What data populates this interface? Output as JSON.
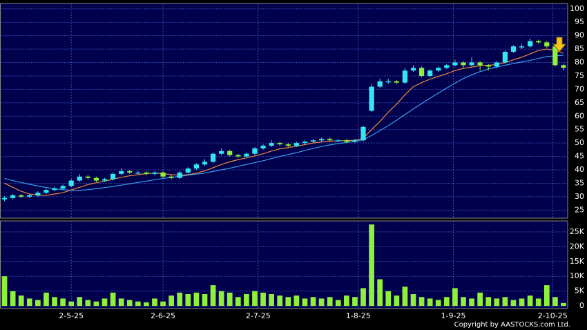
{
  "chart_data": {
    "type": "candlestick",
    "up_color": "#33e6f0",
    "down_color": "#8ff03a",
    "volume_color": "#8ff03a",
    "background": "#00004d",
    "grid": true,
    "xlim": [
      -0.5,
      67.5
    ],
    "xticks": [
      {
        "value": 8,
        "label": "2-5-25"
      },
      {
        "value": 19,
        "label": "2-6-25"
      },
      {
        "value": 30.4,
        "label": "2-7-25"
      },
      {
        "value": 42.4,
        "label": "1-8-25"
      },
      {
        "value": 53.8,
        "label": "1-9-25"
      },
      {
        "value": 65.7,
        "label": "2-10-25"
      }
    ],
    "ylim": [
      22,
      102
    ],
    "yticks": [
      25,
      30,
      35,
      40,
      45,
      50,
      55,
      60,
      65,
      70,
      75,
      80,
      85,
      90,
      95,
      100
    ],
    "volume_ylim": [
      -900,
      28700
    ],
    "volume_yticks": [
      0,
      {
        "value": 5000,
        "label": "5K"
      },
      {
        "value": 10000,
        "label": "10K"
      },
      {
        "value": 15000,
        "label": "15K"
      },
      {
        "value": 20000,
        "label": "20K"
      },
      {
        "value": 25000,
        "label": "25K"
      }
    ],
    "open": [
      29,
      29.5,
      30.5,
      30,
      30.5,
      31.5,
      32.5,
      33,
      34,
      36,
      37.5,
      37,
      36,
      36.5,
      38.5,
      39.5,
      39,
      39,
      38.5,
      39,
      37.5,
      37,
      39,
      40.5,
      42,
      43,
      46,
      47,
      45.5,
      45,
      46,
      48,
      49,
      50,
      49.5,
      49,
      50,
      50.5,
      51,
      51.5,
      51,
      51,
      50.5,
      51,
      62,
      71,
      73,
      73,
      72.5,
      77,
      78,
      75,
      77,
      78,
      79,
      80,
      79,
      80,
      79,
      78.5,
      80,
      84,
      86,
      86,
      88,
      87.5,
      86,
      79
    ],
    "high": [
      30.2,
      31,
      31,
      31,
      32,
      33,
      33.8,
      34.5,
      36.5,
      38.5,
      38,
      37.5,
      37,
      39,
      40.5,
      40,
      39.5,
      39.5,
      39.5,
      39.5,
      38,
      39.5,
      41,
      42.5,
      44,
      46.5,
      48,
      47.5,
      46,
      46.5,
      48.5,
      49.5,
      51,
      50.5,
      50,
      50.5,
      51,
      51.5,
      52,
      52,
      51.5,
      51.5,
      51.5,
      56.5,
      72,
      74,
      74,
      73.5,
      78,
      79,
      78.5,
      77.5,
      78.5,
      79.5,
      81,
      80.5,
      82,
      80.5,
      79.5,
      80.5,
      84.5,
      86.5,
      87,
      89,
      88.5,
      88,
      86.5,
      79.5
    ],
    "low": [
      28.3,
      29,
      29.5,
      29.5,
      30,
      31,
      32,
      32.5,
      33.5,
      35.5,
      36.5,
      35.5,
      35.5,
      36,
      38,
      38.5,
      38.5,
      38,
      38,
      37,
      36.5,
      36.5,
      38.5,
      40,
      41.5,
      42.5,
      45.5,
      45,
      44.5,
      44.5,
      45.5,
      47.5,
      48.5,
      49,
      48.5,
      48.5,
      49.5,
      50,
      50.5,
      50.5,
      50.5,
      50,
      50,
      50.5,
      61.5,
      70.5,
      72,
      72,
      72,
      76.5,
      74.5,
      74.5,
      76.5,
      77.5,
      78.5,
      78,
      78.5,
      77,
      77,
      78,
      79.5,
      83.5,
      85,
      85.5,
      87,
      85.5,
      78.5,
      77
    ],
    "close": [
      29.5,
      30.5,
      30,
      30.5,
      31.5,
      32.5,
      33,
      34,
      36,
      37.5,
      37,
      36,
      36.5,
      38.5,
      39.5,
      39,
      39,
      38.5,
      39,
      37.5,
      37,
      39,
      40.5,
      42,
      43,
      46,
      47,
      45.5,
      45,
      46,
      48,
      49,
      50,
      49.5,
      49,
      50,
      50.5,
      51,
      51.5,
      51,
      51,
      50.5,
      51,
      56,
      71,
      73,
      73,
      72.5,
      77,
      78,
      75,
      77,
      78,
      79,
      80,
      79,
      80,
      79,
      78.5,
      80,
      84,
      86,
      86,
      88,
      87.5,
      86,
      79,
      78
    ],
    "volume": [
      10000,
      5000,
      3500,
      2500,
      2000,
      4500,
      3000,
      2500,
      1500,
      3000,
      2000,
      1500,
      2500,
      4500,
      2500,
      2000,
      1500,
      1200,
      2500,
      1500,
      3500,
      4500,
      4000,
      4500,
      4000,
      7000,
      5000,
      4500,
      3000,
      4000,
      5000,
      4500,
      4000,
      3500,
      3000,
      3500,
      2500,
      3000,
      2500,
      3000,
      2000,
      3500,
      3000,
      6000,
      27500,
      9000,
      5000,
      3500,
      6500,
      4000,
      3000,
      2500,
      2000,
      3000,
      6000,
      3000,
      2500,
      4500,
      3000,
      2500,
      3000,
      2000,
      2500,
      3500,
      2500,
      7000,
      3000,
      1000
    ],
    "moving_averages": [
      {
        "color": "#f08a3a",
        "values": [
          35,
          33.5,
          32,
          31,
          30.5,
          30.5,
          31,
          31.5,
          32.5,
          33.5,
          34.5,
          35.2,
          35.8,
          36.5,
          37.2,
          37.8,
          38.2,
          38.6,
          38.8,
          38.6,
          38.2,
          38,
          38.2,
          38.8,
          39.6,
          40.8,
          42,
          43,
          43.8,
          44.5,
          45.2,
          46,
          47,
          47.8,
          48.3,
          48.8,
          49.4,
          50,
          50.4,
          50.7,
          50.8,
          50.9,
          51,
          51.8,
          55,
          58,
          61.5,
          64.5,
          68,
          71,
          72.5,
          73.8,
          74.8,
          75.8,
          77,
          77.8,
          78.3,
          78.8,
          79,
          79.2,
          80,
          81,
          82,
          83.2,
          84.5,
          85,
          84.5,
          83.5
        ]
      },
      {
        "color": "#3aa0f0",
        "values": [
          36.8,
          36,
          35.3,
          34.6,
          34,
          33.4,
          33,
          32.6,
          32.4,
          32.4,
          32.6,
          33,
          33.4,
          33.8,
          34.3,
          34.8,
          35.3,
          35.8,
          36.3,
          36.8,
          37.2,
          37.6,
          38,
          38.4,
          38.8,
          39.4,
          40,
          40.6,
          41.3,
          42,
          42.7,
          43.4,
          44.2,
          45,
          45.7,
          46.4,
          47.2,
          48,
          48.7,
          49.3,
          49.8,
          50.2,
          50.6,
          51.2,
          52.8,
          54.6,
          56.5,
          58.5,
          60.6,
          62.7,
          64.7,
          66.7,
          68.6,
          70.5,
          72.3,
          74,
          75.4,
          76.6,
          77.6,
          78.3,
          79,
          79.6,
          80.2,
          80.8,
          81.5,
          82.2,
          82.5,
          82.7
        ]
      }
    ],
    "copyright": "Copyright by AASTOCKS.com Ltd."
  }
}
